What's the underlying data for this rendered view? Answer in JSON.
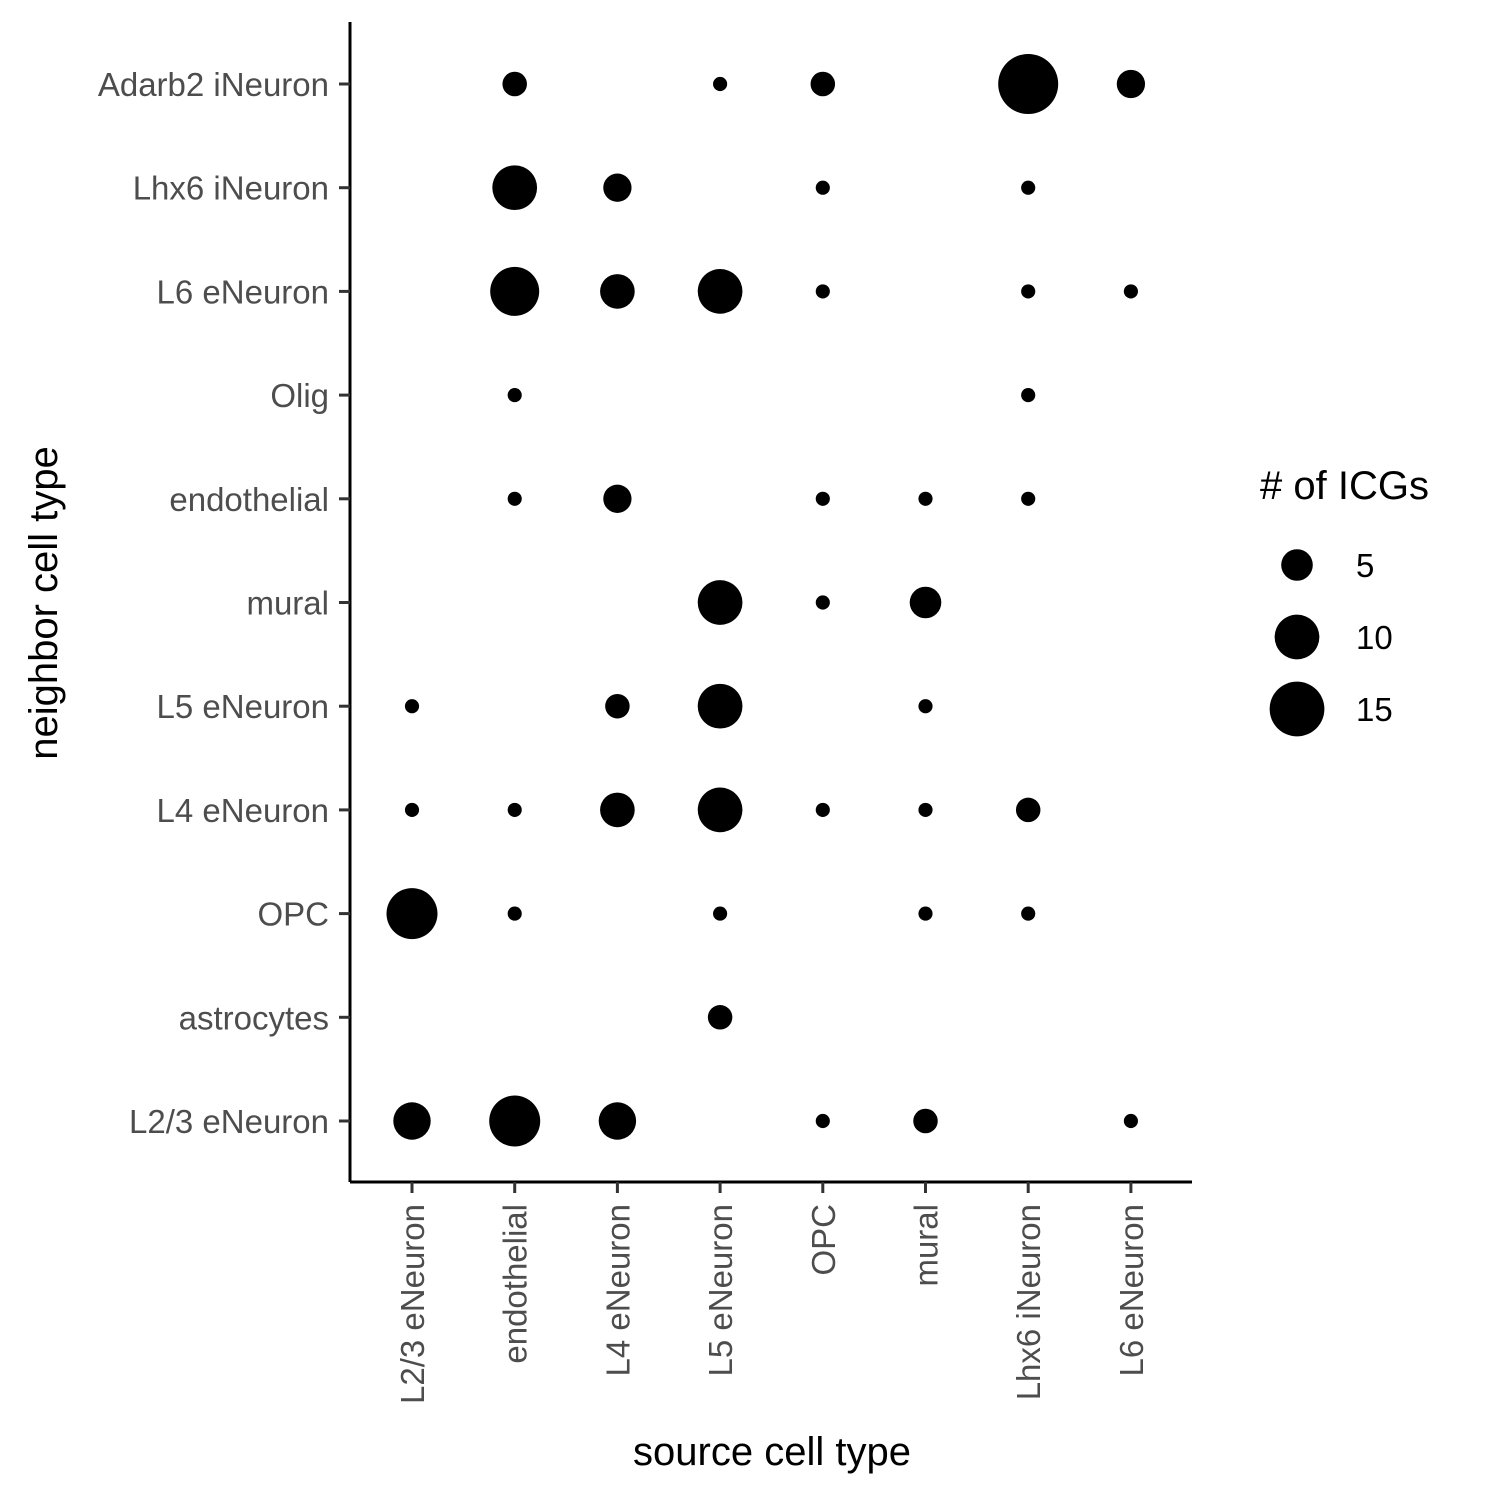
{
  "chart_data": {
    "type": "scatter",
    "subtype": "dot-plot",
    "xlabel": "source cell type",
    "ylabel": "neighbor cell type",
    "x_categories": [
      "L2/3 eNeuron",
      "endothelial",
      "L4 eNeuron",
      "L5 eNeuron",
      "OPC",
      "mural",
      "Lhx6 iNeuron",
      "L6 eNeuron"
    ],
    "y_categories": [
      "L2/3 eNeuron",
      "astrocytes",
      "OPC",
      "L4 eNeuron",
      "L5 eNeuron",
      "mural",
      "endothelial",
      "Olig",
      "L6 eNeuron",
      "Lhx6 iNeuron",
      "Adarb2 iNeuron"
    ],
    "size_legend": {
      "title": "# of ICGs",
      "values": [
        5,
        10,
        15
      ],
      "placement": "right"
    },
    "color": "#000000",
    "grid": false,
    "points": [
      {
        "x": "endothelial",
        "y": "Adarb2 iNeuron",
        "value": 3
      },
      {
        "x": "L5 eNeuron",
        "y": "Adarb2 iNeuron",
        "value": 1
      },
      {
        "x": "OPC",
        "y": "Adarb2 iNeuron",
        "value": 3
      },
      {
        "x": "Lhx6 iNeuron",
        "y": "Adarb2 iNeuron",
        "value": 18
      },
      {
        "x": "L6 eNeuron",
        "y": "Adarb2 iNeuron",
        "value": 4
      },
      {
        "x": "endothelial",
        "y": "Lhx6 iNeuron",
        "value": 10
      },
      {
        "x": "L4 eNeuron",
        "y": "Lhx6 iNeuron",
        "value": 4
      },
      {
        "x": "OPC",
        "y": "Lhx6 iNeuron",
        "value": 1
      },
      {
        "x": "Lhx6 iNeuron",
        "y": "Lhx6 iNeuron",
        "value": 1
      },
      {
        "x": "endothelial",
        "y": "L6 eNeuron",
        "value": 12
      },
      {
        "x": "L4 eNeuron",
        "y": "L6 eNeuron",
        "value": 6
      },
      {
        "x": "L5 eNeuron",
        "y": "L6 eNeuron",
        "value": 10
      },
      {
        "x": "OPC",
        "y": "L6 eNeuron",
        "value": 1
      },
      {
        "x": "Lhx6 iNeuron",
        "y": "L6 eNeuron",
        "value": 1
      },
      {
        "x": "L6 eNeuron",
        "y": "L6 eNeuron",
        "value": 1
      },
      {
        "x": "endothelial",
        "y": "Olig",
        "value": 1
      },
      {
        "x": "Lhx6 iNeuron",
        "y": "Olig",
        "value": 1
      },
      {
        "x": "endothelial",
        "y": "endothelial",
        "value": 1
      },
      {
        "x": "L4 eNeuron",
        "y": "endothelial",
        "value": 4
      },
      {
        "x": "OPC",
        "y": "endothelial",
        "value": 1
      },
      {
        "x": "mural",
        "y": "endothelial",
        "value": 1
      },
      {
        "x": "Lhx6 iNeuron",
        "y": "endothelial",
        "value": 1
      },
      {
        "x": "L5 eNeuron",
        "y": "mural",
        "value": 10
      },
      {
        "x": "OPC",
        "y": "mural",
        "value": 1
      },
      {
        "x": "mural",
        "y": "mural",
        "value": 5
      },
      {
        "x": "L2/3 eNeuron",
        "y": "L5 eNeuron",
        "value": 1
      },
      {
        "x": "L4 eNeuron",
        "y": "L5 eNeuron",
        "value": 3
      },
      {
        "x": "L5 eNeuron",
        "y": "L5 eNeuron",
        "value": 10
      },
      {
        "x": "mural",
        "y": "L5 eNeuron",
        "value": 1
      },
      {
        "x": "L2/3 eNeuron",
        "y": "L4 eNeuron",
        "value": 1
      },
      {
        "x": "endothelial",
        "y": "L4 eNeuron",
        "value": 1
      },
      {
        "x": "L4 eNeuron",
        "y": "L4 eNeuron",
        "value": 6
      },
      {
        "x": "L5 eNeuron",
        "y": "L4 eNeuron",
        "value": 10
      },
      {
        "x": "OPC",
        "y": "L4 eNeuron",
        "value": 1
      },
      {
        "x": "mural",
        "y": "L4 eNeuron",
        "value": 1
      },
      {
        "x": "Lhx6 iNeuron",
        "y": "L4 eNeuron",
        "value": 3
      },
      {
        "x": "L2/3 eNeuron",
        "y": "OPC",
        "value": 13
      },
      {
        "x": "endothelial",
        "y": "OPC",
        "value": 1
      },
      {
        "x": "L5 eNeuron",
        "y": "OPC",
        "value": 1
      },
      {
        "x": "mural",
        "y": "OPC",
        "value": 1
      },
      {
        "x": "Lhx6 iNeuron",
        "y": "OPC",
        "value": 1
      },
      {
        "x": "L5 eNeuron",
        "y": "astrocytes",
        "value": 3
      },
      {
        "x": "L2/3 eNeuron",
        "y": "L2/3 eNeuron",
        "value": 7
      },
      {
        "x": "endothelial",
        "y": "L2/3 eNeuron",
        "value": 13
      },
      {
        "x": "L4 eNeuron",
        "y": "L2/3 eNeuron",
        "value": 7
      },
      {
        "x": "OPC",
        "y": "L2/3 eNeuron",
        "value": 1
      },
      {
        "x": "mural",
        "y": "L2/3 eNeuron",
        "value": 3
      },
      {
        "x": "L6 eNeuron",
        "y": "L2/3 eNeuron",
        "value": 1
      }
    ]
  }
}
